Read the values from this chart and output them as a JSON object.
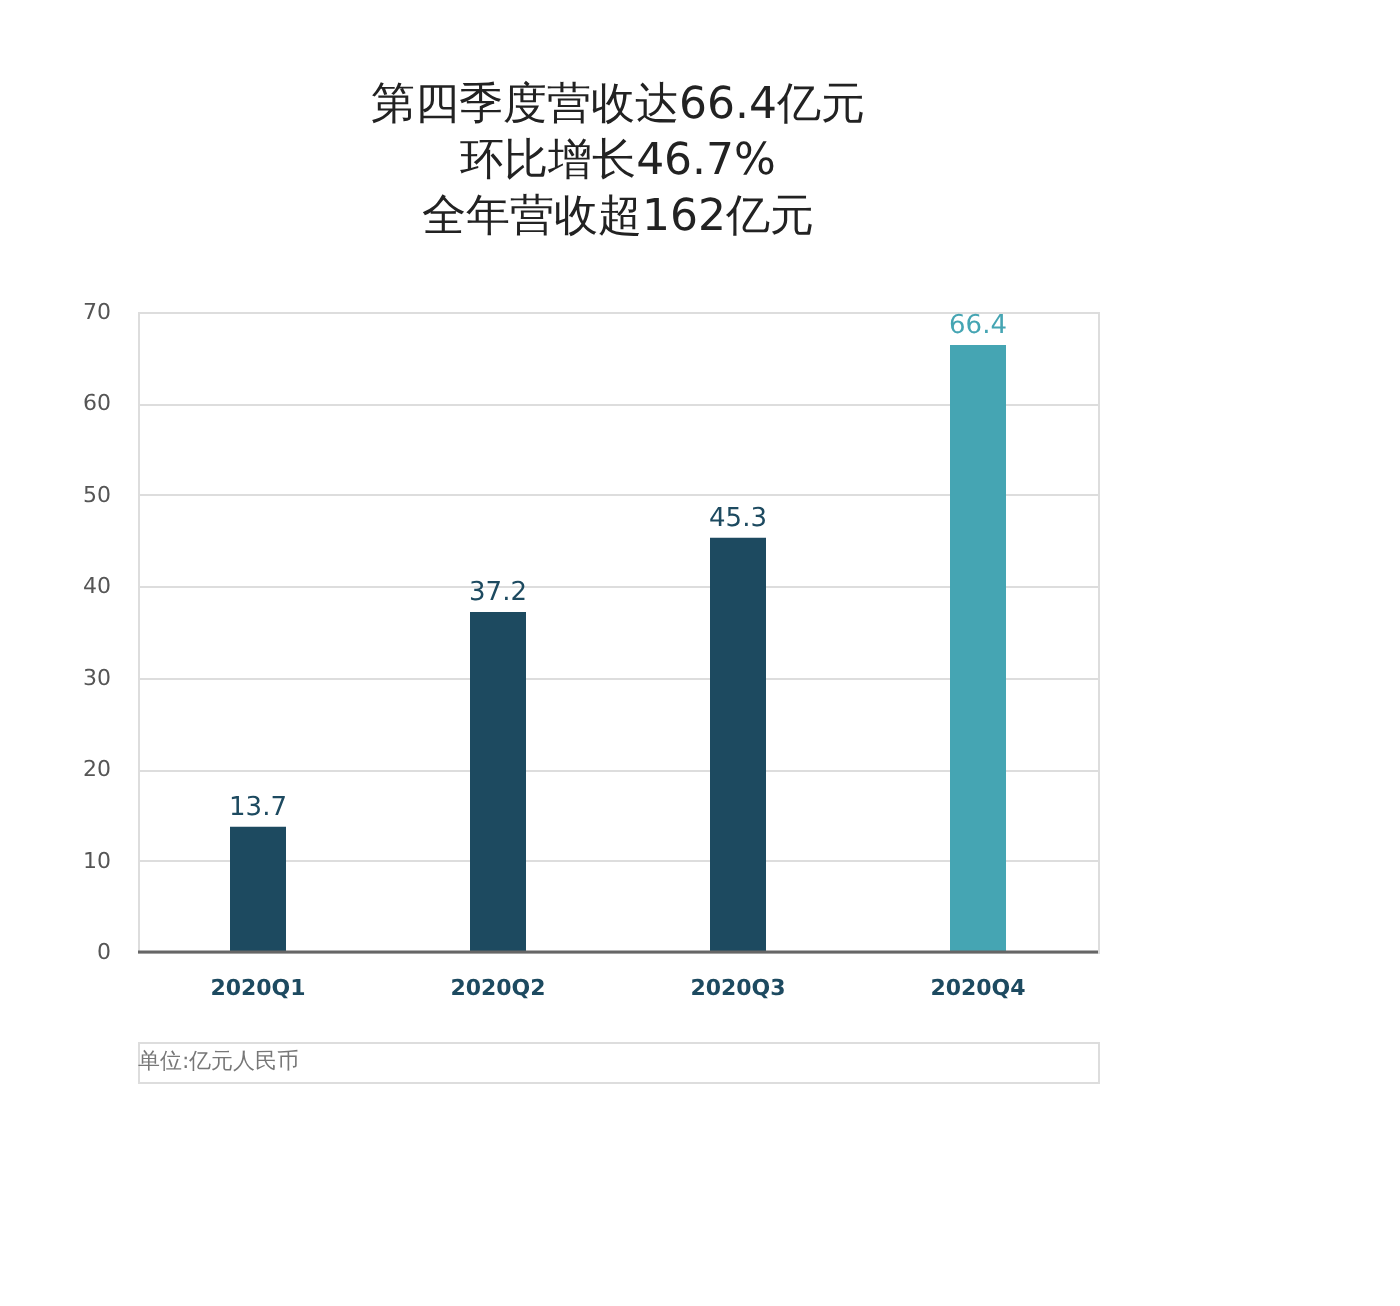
{
  "chart_data": {
    "type": "bar",
    "title": [
      "第四季度营收达66.4亿元",
      "环比增长46.7%",
      "全年营收超162亿元"
    ],
    "categories": [
      "2020Q1",
      "2020Q2",
      "2020Q3",
      "2020Q4"
    ],
    "values": [
      13.7,
      37.2,
      45.3,
      66.4
    ],
    "colors": [
      "#1d4a60",
      "#1d4a60",
      "#1d4a60",
      "#45a5b3"
    ],
    "ylim": [
      0,
      70
    ],
    "yticks": [
      0,
      10,
      20,
      30,
      40,
      50,
      60,
      70
    ],
    "grid": "y",
    "data_labels": true,
    "annotations": [
      "单位:亿元人民币"
    ]
  }
}
